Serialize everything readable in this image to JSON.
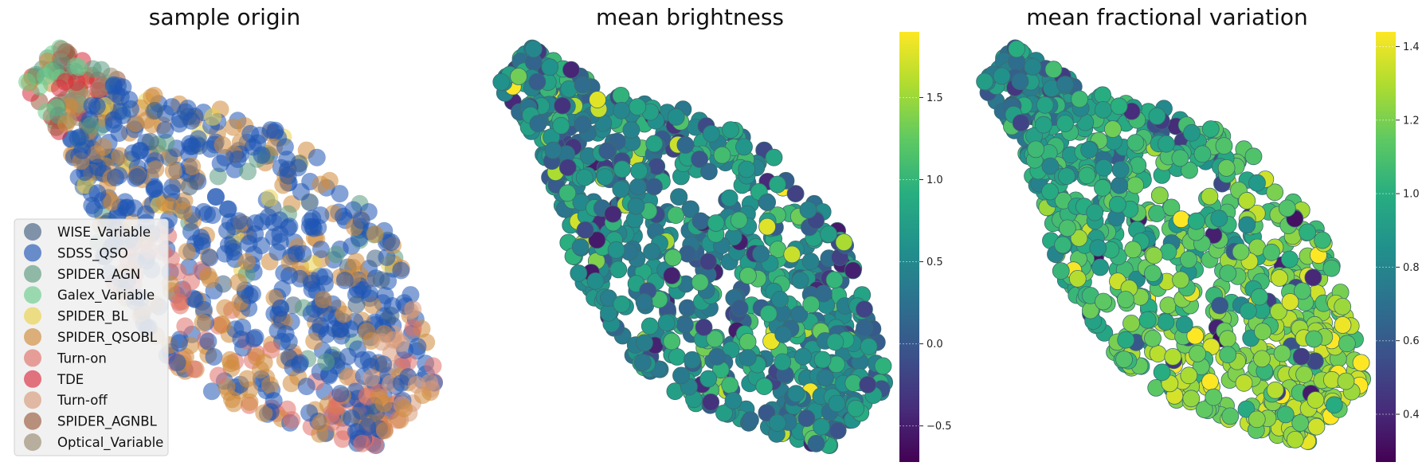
{
  "chart_data": [
    {
      "type": "scatter",
      "title": "sample origin",
      "legend_position": "lower-left",
      "grid": false,
      "legend": [
        {
          "label": "WISE_Variable",
          "color": "#42607f"
        },
        {
          "label": "SDSS_QSO",
          "color": "#1f55b5"
        },
        {
          "label": "SPIDER_AGN",
          "color": "#5a9a80"
        },
        {
          "label": "Galex_Variable",
          "color": "#6ccc8c"
        },
        {
          "label": "SPIDER_BL",
          "color": "#ead24a"
        },
        {
          "label": "SPIDER_QSOBL",
          "color": "#cf8a3a"
        },
        {
          "label": "Turn-on",
          "color": "#e07067"
        },
        {
          "label": "TDE",
          "color": "#d92c3d"
        },
        {
          "label": "Turn-off",
          "color": "#d99a7a"
        },
        {
          "label": "SPIDER_AGNBL",
          "color": "#9a5a3c"
        },
        {
          "label": "Optical_Variable",
          "color": "#9a8a70"
        }
      ]
    },
    {
      "type": "scatter",
      "title": "mean brightness",
      "colormap": "viridis",
      "grid": false,
      "colorbar": {
        "min": -0.72,
        "max": 1.9,
        "ticks": [
          -0.5,
          0.0,
          0.5,
          1.0,
          1.5
        ],
        "tick_labels": [
          "−0.5",
          "0.0",
          "0.5",
          "1.0",
          "1.5"
        ]
      }
    },
    {
      "type": "scatter",
      "title": "mean fractional variation",
      "colormap": "viridis",
      "grid": false,
      "colorbar": {
        "min": 0.27,
        "max": 1.44,
        "ticks": [
          0.4,
          0.6,
          0.8,
          1.0,
          1.2,
          1.4
        ],
        "tick_labels": [
          "0.4",
          "0.6",
          "0.8",
          "1.0",
          "1.2",
          "1.4"
        ]
      }
    }
  ]
}
